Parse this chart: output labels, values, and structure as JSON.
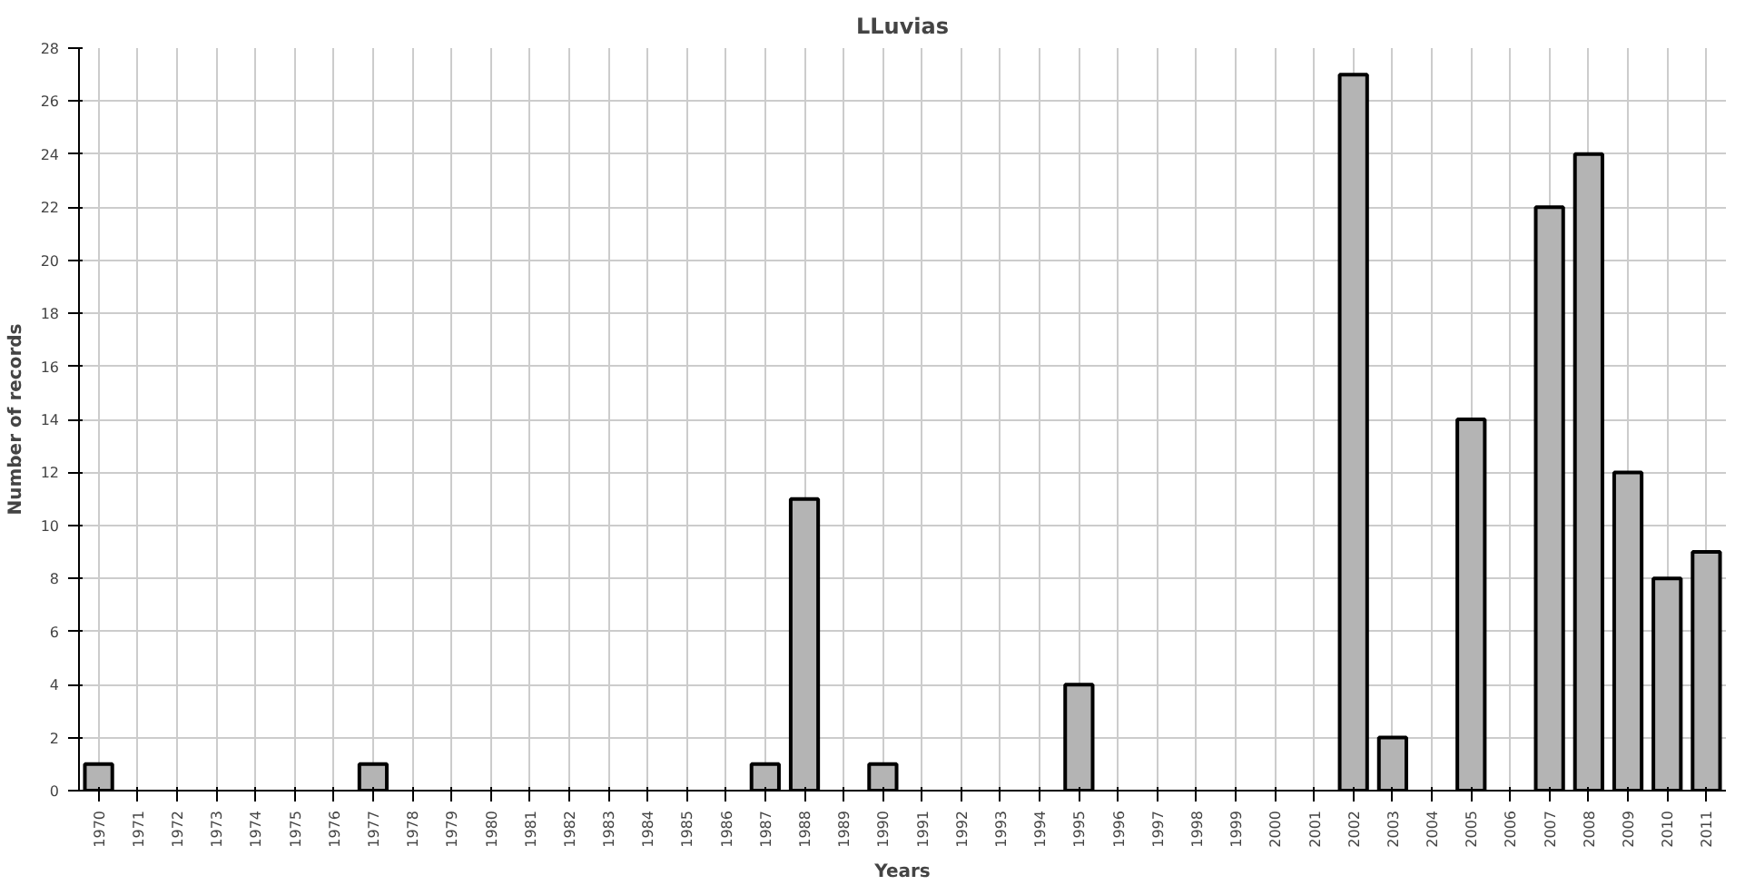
{
  "chart_data": {
    "type": "bar",
    "title": "LLuvias",
    "xlabel": "Years",
    "ylabel": "Number of records",
    "categories": [
      "1970",
      "1971",
      "1972",
      "1973",
      "1974",
      "1975",
      "1976",
      "1977",
      "1978",
      "1979",
      "1980",
      "1981",
      "1982",
      "1983",
      "1984",
      "1985",
      "1986",
      "1987",
      "1988",
      "1989",
      "1990",
      "1991",
      "1992",
      "1993",
      "1994",
      "1995",
      "1996",
      "1997",
      "1998",
      "1999",
      "2000",
      "2001",
      "2002",
      "2003",
      "2004",
      "2005",
      "2006",
      "2007",
      "2008",
      "2009",
      "2010",
      "2011"
    ],
    "values": [
      1,
      null,
      null,
      null,
      null,
      null,
      null,
      1,
      null,
      null,
      null,
      null,
      null,
      null,
      null,
      null,
      null,
      1,
      11,
      null,
      1,
      null,
      null,
      null,
      null,
      4,
      null,
      null,
      null,
      null,
      null,
      null,
      27,
      2,
      null,
      14,
      null,
      22,
      24,
      12,
      8,
      9
    ],
    "color": "#b4b4b4",
    "ylim": [
      0,
      28
    ],
    "yticks": [
      0,
      2,
      4,
      6,
      8,
      10,
      12,
      14,
      16,
      18,
      20,
      22,
      24,
      26,
      28
    ],
    "grid": true
  }
}
